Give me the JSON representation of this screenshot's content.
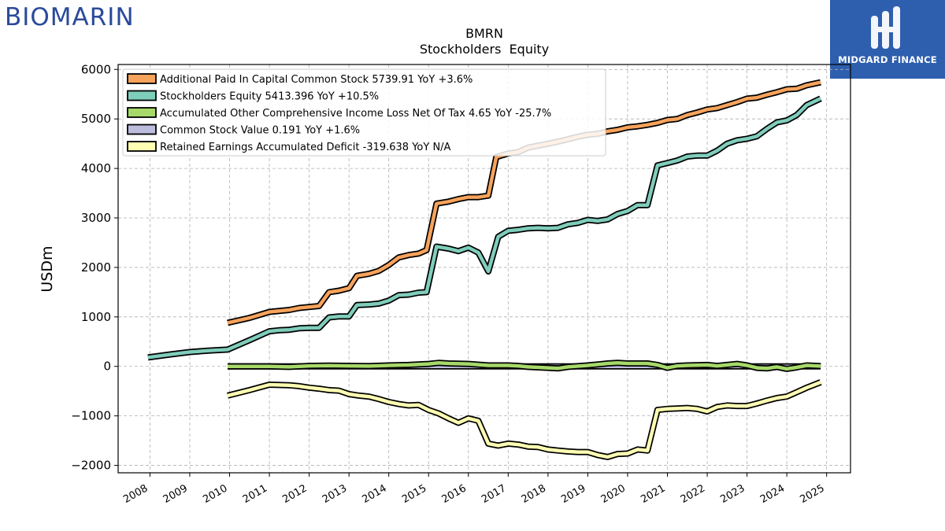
{
  "branding": {
    "left_logo_text": "BIOMARIN",
    "right_logo_text": "MIDGARD FINANCE"
  },
  "colors": {
    "apic": "#f7a35c",
    "equity": "#7fcdbb",
    "aoci": "#a6d96a",
    "common": "#bcbddc",
    "retained": "#ffffb3",
    "outline": "#000000",
    "grid": "#b0b0b0"
  },
  "chart_data": {
    "type": "line",
    "title": "BMRN",
    "subtitle": "Stockholders  Equity",
    "xlabel": "",
    "ylabel": "USDm",
    "xlim": [
      2007.2,
      2025.6
    ],
    "ylim": [
      -2150,
      6100
    ],
    "xticks": [
      2008,
      2009,
      2010,
      2011,
      2012,
      2013,
      2014,
      2015,
      2016,
      2017,
      2018,
      2019,
      2020,
      2021,
      2022,
      2023,
      2024,
      2025
    ],
    "yticks": [
      -2000,
      -1000,
      0,
      1000,
      2000,
      3000,
      4000,
      5000,
      6000
    ],
    "grid": true,
    "legend_position": "top-left",
    "series": [
      {
        "name": "Additional Paid In Capital Common Stock  5739.91 YoY +3.6%",
        "color_key": "apic",
        "points": [
          [
            2009.95,
            880
          ],
          [
            2010.5,
            980
          ],
          [
            2011.0,
            1100
          ],
          [
            2011.5,
            1140
          ],
          [
            2011.75,
            1180
          ],
          [
            2012.25,
            1220
          ],
          [
            2012.5,
            1500
          ],
          [
            2012.75,
            1530
          ],
          [
            2013.0,
            1580
          ],
          [
            2013.2,
            1830
          ],
          [
            2013.5,
            1870
          ],
          [
            2013.75,
            1930
          ],
          [
            2014.0,
            2050
          ],
          [
            2014.25,
            2200
          ],
          [
            2014.5,
            2250
          ],
          [
            2014.75,
            2280
          ],
          [
            2014.95,
            2350
          ],
          [
            2015.2,
            3290
          ],
          [
            2015.5,
            3330
          ],
          [
            2015.75,
            3380
          ],
          [
            2016.0,
            3420
          ],
          [
            2016.25,
            3420
          ],
          [
            2016.5,
            3450
          ],
          [
            2016.7,
            4230
          ],
          [
            2017.0,
            4300
          ],
          [
            2017.25,
            4330
          ],
          [
            2017.5,
            4420
          ],
          [
            2017.75,
            4460
          ],
          [
            2018.0,
            4500
          ],
          [
            2018.25,
            4540
          ],
          [
            2018.5,
            4590
          ],
          [
            2018.75,
            4640
          ],
          [
            2019.0,
            4680
          ],
          [
            2019.25,
            4700
          ],
          [
            2019.5,
            4750
          ],
          [
            2019.75,
            4780
          ],
          [
            2020.0,
            4830
          ],
          [
            2020.25,
            4850
          ],
          [
            2020.5,
            4880
          ],
          [
            2020.75,
            4920
          ],
          [
            2021.0,
            4980
          ],
          [
            2021.25,
            5000
          ],
          [
            2021.5,
            5080
          ],
          [
            2021.75,
            5130
          ],
          [
            2022.0,
            5190
          ],
          [
            2022.25,
            5220
          ],
          [
            2022.5,
            5280
          ],
          [
            2022.75,
            5340
          ],
          [
            2023.0,
            5410
          ],
          [
            2023.25,
            5430
          ],
          [
            2023.5,
            5490
          ],
          [
            2023.75,
            5540
          ],
          [
            2024.0,
            5600
          ],
          [
            2024.25,
            5610
          ],
          [
            2024.5,
            5680
          ],
          [
            2024.85,
            5740
          ]
        ]
      },
      {
        "name": "Stockholders Equity  5413.396 YoY +10.5%",
        "color_key": "equity",
        "points": [
          [
            2007.95,
            180
          ],
          [
            2008.5,
            240
          ],
          [
            2009.0,
            290
          ],
          [
            2009.5,
            320
          ],
          [
            2009.95,
            340
          ],
          [
            2010.5,
            530
          ],
          [
            2011.0,
            710
          ],
          [
            2011.25,
            730
          ],
          [
            2011.5,
            740
          ],
          [
            2011.75,
            770
          ],
          [
            2012.0,
            780
          ],
          [
            2012.25,
            780
          ],
          [
            2012.5,
            990
          ],
          [
            2012.75,
            1010
          ],
          [
            2013.0,
            1010
          ],
          [
            2013.2,
            1240
          ],
          [
            2013.5,
            1250
          ],
          [
            2013.75,
            1270
          ],
          [
            2014.0,
            1330
          ],
          [
            2014.25,
            1440
          ],
          [
            2014.5,
            1450
          ],
          [
            2014.75,
            1490
          ],
          [
            2014.95,
            1500
          ],
          [
            2015.2,
            2420
          ],
          [
            2015.5,
            2380
          ],
          [
            2015.75,
            2330
          ],
          [
            2016.0,
            2400
          ],
          [
            2016.25,
            2300
          ],
          [
            2016.5,
            1920
          ],
          [
            2016.75,
            2620
          ],
          [
            2017.0,
            2740
          ],
          [
            2017.25,
            2760
          ],
          [
            2017.5,
            2790
          ],
          [
            2017.75,
            2800
          ],
          [
            2018.0,
            2790
          ],
          [
            2018.25,
            2800
          ],
          [
            2018.5,
            2870
          ],
          [
            2018.75,
            2900
          ],
          [
            2019.0,
            2960
          ],
          [
            2019.25,
            2940
          ],
          [
            2019.5,
            2970
          ],
          [
            2019.75,
            3080
          ],
          [
            2020.0,
            3140
          ],
          [
            2020.25,
            3260
          ],
          [
            2020.5,
            3260
          ],
          [
            2020.75,
            4060
          ],
          [
            2021.0,
            4110
          ],
          [
            2021.25,
            4160
          ],
          [
            2021.5,
            4240
          ],
          [
            2021.75,
            4260
          ],
          [
            2022.0,
            4260
          ],
          [
            2022.25,
            4360
          ],
          [
            2022.5,
            4500
          ],
          [
            2022.75,
            4570
          ],
          [
            2023.0,
            4600
          ],
          [
            2023.25,
            4650
          ],
          [
            2023.5,
            4800
          ],
          [
            2023.75,
            4930
          ],
          [
            2024.0,
            4970
          ],
          [
            2024.25,
            5080
          ],
          [
            2024.5,
            5280
          ],
          [
            2024.85,
            5413
          ]
        ]
      },
      {
        "name": "Accumulated Other Comprehensive Income Loss Net Of Tax  4.65 YoY -25.7%",
        "color_key": "aoci",
        "points": [
          [
            2009.95,
            0
          ],
          [
            2011.0,
            0
          ],
          [
            2011.5,
            -10
          ],
          [
            2012.0,
            10
          ],
          [
            2012.5,
            15
          ],
          [
            2013.0,
            10
          ],
          [
            2013.5,
            5
          ],
          [
            2014.0,
            20
          ],
          [
            2014.5,
            30
          ],
          [
            2015.0,
            50
          ],
          [
            2015.25,
            70
          ],
          [
            2015.5,
            60
          ],
          [
            2016.0,
            50
          ],
          [
            2016.5,
            20
          ],
          [
            2017.0,
            20
          ],
          [
            2017.25,
            10
          ],
          [
            2017.5,
            -10
          ],
          [
            2018.0,
            -30
          ],
          [
            2018.25,
            -40
          ],
          [
            2018.5,
            -10
          ],
          [
            2019.0,
            20
          ],
          [
            2019.5,
            60
          ],
          [
            2019.75,
            70
          ],
          [
            2020.0,
            60
          ],
          [
            2020.5,
            60
          ],
          [
            2020.75,
            30
          ],
          [
            2021.0,
            -30
          ],
          [
            2021.25,
            10
          ],
          [
            2021.5,
            20
          ],
          [
            2022.0,
            30
          ],
          [
            2022.25,
            10
          ],
          [
            2022.5,
            30
          ],
          [
            2022.75,
            50
          ],
          [
            2023.0,
            20
          ],
          [
            2023.25,
            -30
          ],
          [
            2023.5,
            -40
          ],
          [
            2023.75,
            -10
          ],
          [
            2024.0,
            -50
          ],
          [
            2024.25,
            -20
          ],
          [
            2024.5,
            20
          ],
          [
            2024.85,
            5
          ]
        ]
      },
      {
        "name": "Common Stock Value  0.191 YoY +1.6%",
        "color_key": "common",
        "points": [
          [
            2009.95,
            0.1
          ],
          [
            2012.0,
            0.11
          ],
          [
            2014.0,
            0.14
          ],
          [
            2016.0,
            0.16
          ],
          [
            2018.0,
            0.17
          ],
          [
            2020.0,
            0.18
          ],
          [
            2022.0,
            0.184
          ],
          [
            2024.85,
            0.191
          ]
        ]
      },
      {
        "name": "Retained Earnings Accumulated Deficit  -319.638 YoY N/A",
        "color_key": "retained",
        "points": [
          [
            2009.95,
            -590
          ],
          [
            2010.5,
            -480
          ],
          [
            2011.0,
            -370
          ],
          [
            2011.5,
            -380
          ],
          [
            2011.75,
            -400
          ],
          [
            2012.0,
            -430
          ],
          [
            2012.25,
            -450
          ],
          [
            2012.5,
            -480
          ],
          [
            2012.75,
            -490
          ],
          [
            2013.0,
            -560
          ],
          [
            2013.25,
            -590
          ],
          [
            2013.5,
            -610
          ],
          [
            2013.75,
            -660
          ],
          [
            2014.0,
            -720
          ],
          [
            2014.25,
            -760
          ],
          [
            2014.5,
            -790
          ],
          [
            2014.75,
            -780
          ],
          [
            2015.0,
            -880
          ],
          [
            2015.25,
            -950
          ],
          [
            2015.5,
            -1050
          ],
          [
            2015.75,
            -1140
          ],
          [
            2016.0,
            -1050
          ],
          [
            2016.25,
            -1100
          ],
          [
            2016.5,
            -1560
          ],
          [
            2016.75,
            -1600
          ],
          [
            2017.0,
            -1560
          ],
          [
            2017.25,
            -1580
          ],
          [
            2017.5,
            -1620
          ],
          [
            2017.75,
            -1630
          ],
          [
            2018.0,
            -1680
          ],
          [
            2018.25,
            -1700
          ],
          [
            2018.5,
            -1720
          ],
          [
            2018.75,
            -1730
          ],
          [
            2019.0,
            -1730
          ],
          [
            2019.25,
            -1790
          ],
          [
            2019.5,
            -1830
          ],
          [
            2019.75,
            -1770
          ],
          [
            2020.0,
            -1760
          ],
          [
            2020.25,
            -1680
          ],
          [
            2020.5,
            -1700
          ],
          [
            2020.75,
            -880
          ],
          [
            2021.0,
            -860
          ],
          [
            2021.25,
            -850
          ],
          [
            2021.5,
            -840
          ],
          [
            2021.75,
            -860
          ],
          [
            2022.0,
            -910
          ],
          [
            2022.25,
            -820
          ],
          [
            2022.5,
            -790
          ],
          [
            2022.75,
            -800
          ],
          [
            2023.0,
            -800
          ],
          [
            2023.25,
            -750
          ],
          [
            2023.5,
            -690
          ],
          [
            2023.75,
            -640
          ],
          [
            2024.0,
            -610
          ],
          [
            2024.25,
            -520
          ],
          [
            2024.5,
            -430
          ],
          [
            2024.85,
            -320
          ]
        ]
      }
    ]
  }
}
